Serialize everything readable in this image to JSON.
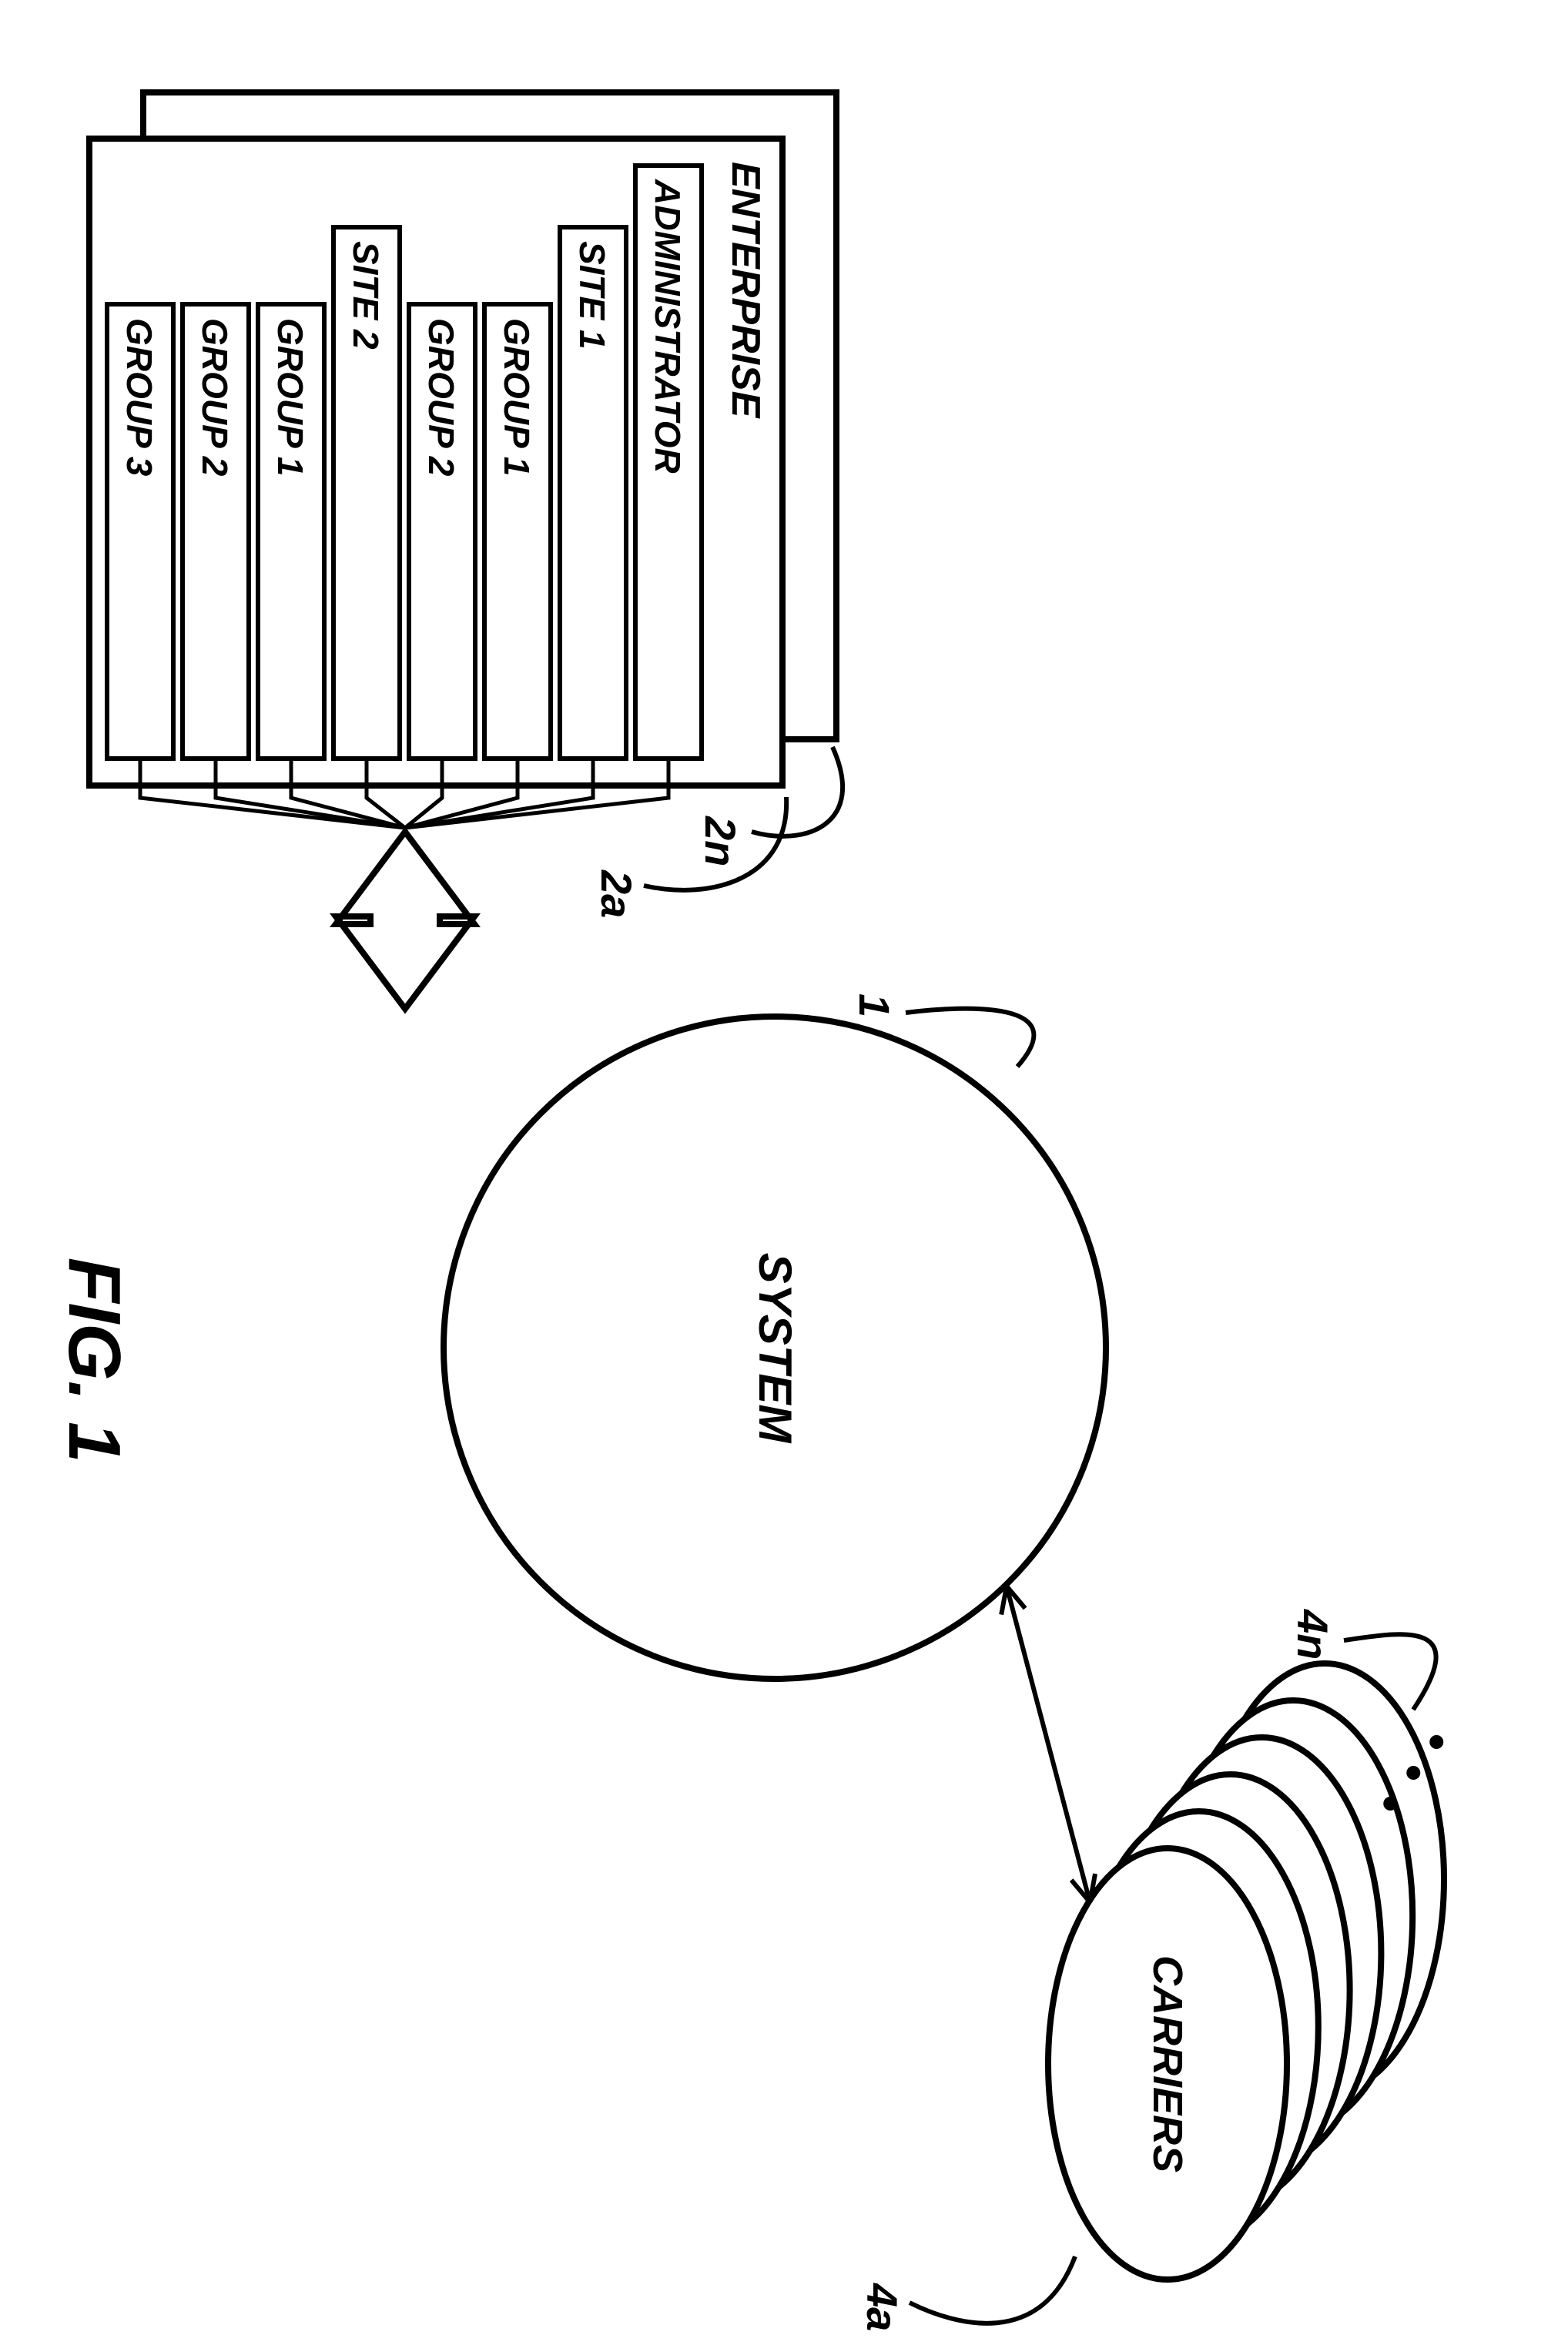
{
  "figure_label": "FIG. 1",
  "system": {
    "label": "SYSTEM",
    "ref": "1"
  },
  "carriers": {
    "label": "CARRIERS",
    "ref_front": "4a",
    "ref_back": "4n",
    "count": 6
  },
  "enterprise": {
    "title": "ENTERPRISE",
    "ref_front": "2a",
    "ref_back": "2n",
    "rows": [
      {
        "label": "ADMINISTRATOR",
        "indent": 0
      },
      {
        "label": "SITE 1",
        "indent": 1
      },
      {
        "label": "GROUP 1",
        "indent": 2
      },
      {
        "label": "GROUP 2",
        "indent": 2
      },
      {
        "label": "SITE 2",
        "indent": 1
      },
      {
        "label": "GROUP 1",
        "indent": 2
      },
      {
        "label": "GROUP 2",
        "indent": 2
      },
      {
        "label": "GROUP 3",
        "indent": 2
      }
    ]
  },
  "style": {
    "stroke": "#000000",
    "stroke_width_main": 8,
    "stroke_width_box": 6,
    "font_size_node": 56,
    "font_size_box": 48,
    "font_size_ref": 56,
    "font_size_fig": 96
  }
}
